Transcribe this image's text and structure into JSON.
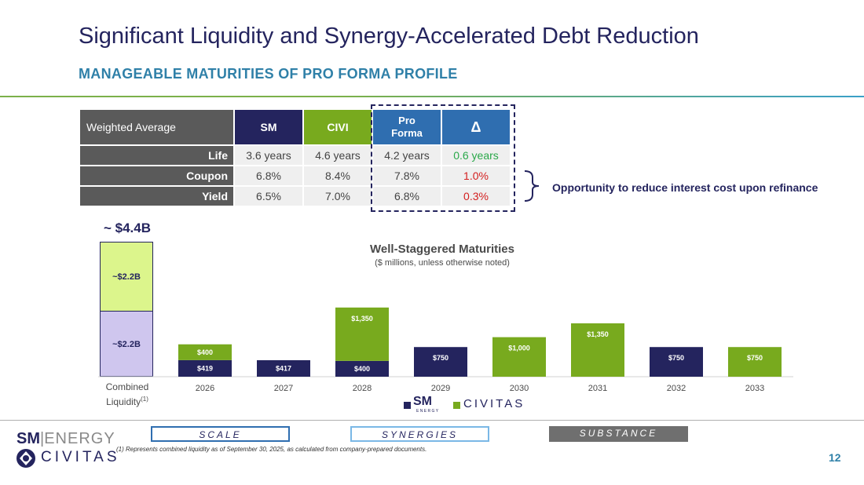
{
  "title": "Significant Liquidity and Synergy-Accelerated Debt Reduction",
  "subtitle": "MANAGEABLE MATURITIES OF PRO FORMA PROFILE",
  "table": {
    "header": {
      "label": "Weighted Average",
      "sm": "SM",
      "civi": "CIVI",
      "pro_forma_1": "Pro",
      "pro_forma_2": "Forma",
      "delta": "Δ"
    },
    "rows": [
      {
        "label": "Life",
        "sm": "3.6 years",
        "civi": "4.6 years",
        "pro_forma": "4.2 years",
        "delta": "0.6 years"
      },
      {
        "label": "Coupon",
        "sm": "6.8%",
        "civi": "8.4%",
        "pro_forma": "7.8%",
        "delta": "1.0%"
      },
      {
        "label": "Yield",
        "sm": "6.5%",
        "civi": "7.0%",
        "pro_forma": "6.8%",
        "delta": "0.3%"
      }
    ],
    "colors": {
      "sm": "#24245e",
      "civi": "#78aa1e",
      "pro_forma": "#2f6eb0",
      "delta_positive": "#2aa84a",
      "delta_negative": "#d42020"
    }
  },
  "callout": "Opportunity to reduce interest cost upon refinance",
  "liquidity": {
    "total": "~ $4.4B",
    "top_label": "~$2.2B",
    "bottom_label": "~$2.2B",
    "axis_label": "Combined",
    "axis_label_2": "Liquidity",
    "footnote_marker": "(1)"
  },
  "chart_data": {
    "type": "bar",
    "stacked": true,
    "title": "Well-Staggered Maturities",
    "subtitle": "($ millions, unless otherwise noted)",
    "categories": [
      "2026",
      "2027",
      "2028",
      "2029",
      "2030",
      "2031",
      "2032",
      "2033"
    ],
    "series": [
      {
        "name": "SM ENERGY",
        "color": "#24245e",
        "values": [
          419,
          417,
          400,
          750,
          0,
          0,
          750,
          0
        ],
        "labels": [
          "$419",
          "$417",
          "$400",
          "$750",
          "",
          "",
          "$750",
          ""
        ]
      },
      {
        "name": "CIVITAS",
        "color": "#78aa1e",
        "values": [
          400,
          0,
          1350,
          0,
          1000,
          1350,
          0,
          750
        ],
        "labels": [
          "$400",
          "",
          "$1,350",
          "",
          "$1,000",
          "$1,350",
          "",
          "$750"
        ]
      }
    ],
    "legend": "bottom-center"
  },
  "legend": {
    "sm": "SM",
    "sm_sub": "ENERGY",
    "civitas": "CIVITAS"
  },
  "pillars": {
    "scale": "SCALE",
    "synergies": "SYNERGIES",
    "substance": "SUBSTANCE"
  },
  "logo": {
    "sm": "SM",
    "energy": "ENERGY",
    "civitas": "CIVITAS"
  },
  "footnote": "(1)    Represents combined liquidity as of September 30, 2025, as calculated from company-prepared documents.",
  "page_number": "12"
}
